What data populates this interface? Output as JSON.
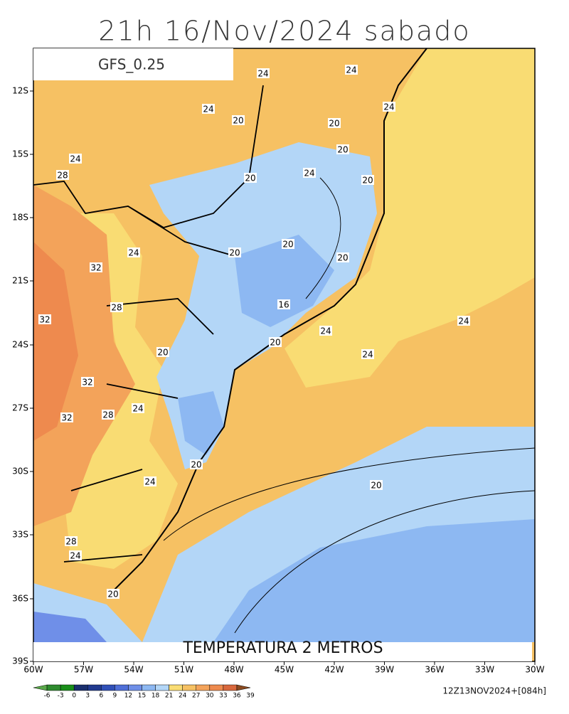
{
  "header": {
    "title": "21h 16/Nov/2024 sabado",
    "model": "GFS_0.25"
  },
  "map": {
    "field_title": "TEMPERATURA 2 METROS",
    "lat_labels": [
      "12S",
      "15S",
      "18S",
      "21S",
      "24S",
      "27S",
      "30S",
      "33S",
      "36S",
      "39S"
    ],
    "lon_labels": [
      "60W",
      "57W",
      "54W",
      "51W",
      "48W",
      "45W",
      "42W",
      "39W",
      "36W",
      "33W",
      "30W"
    ],
    "contour_labels": [
      "24",
      "24",
      "24",
      "24",
      "20",
      "20",
      "20",
      "24",
      "20",
      "24",
      "20",
      "28",
      "20",
      "20",
      "24",
      "20",
      "32",
      "16",
      "28",
      "32",
      "24",
      "24",
      "20",
      "20",
      "24",
      "32",
      "24",
      "28",
      "32",
      "20",
      "24",
      "20",
      "28",
      "24",
      "20"
    ]
  },
  "colorbar": {
    "labels": [
      "-6",
      "-3",
      "0",
      "3",
      "6",
      "9",
      "12",
      "15",
      "18",
      "21",
      "24",
      "27",
      "30",
      "33",
      "36",
      "39"
    ],
    "colors": [
      "#5aa84a",
      "#2e8b2e",
      "#1a8f1a",
      "#1a2f6e",
      "#213a8f",
      "#3050b8",
      "#4f6fd8",
      "#6f8fe8",
      "#8db8f2",
      "#b3d6f7",
      "#f9dc73",
      "#f6c163",
      "#f3a35a",
      "#ee8a4e",
      "#d9683d",
      "#8b4a20"
    ]
  },
  "footer": {
    "run": "12Z13NOV2024+[084h]"
  }
}
